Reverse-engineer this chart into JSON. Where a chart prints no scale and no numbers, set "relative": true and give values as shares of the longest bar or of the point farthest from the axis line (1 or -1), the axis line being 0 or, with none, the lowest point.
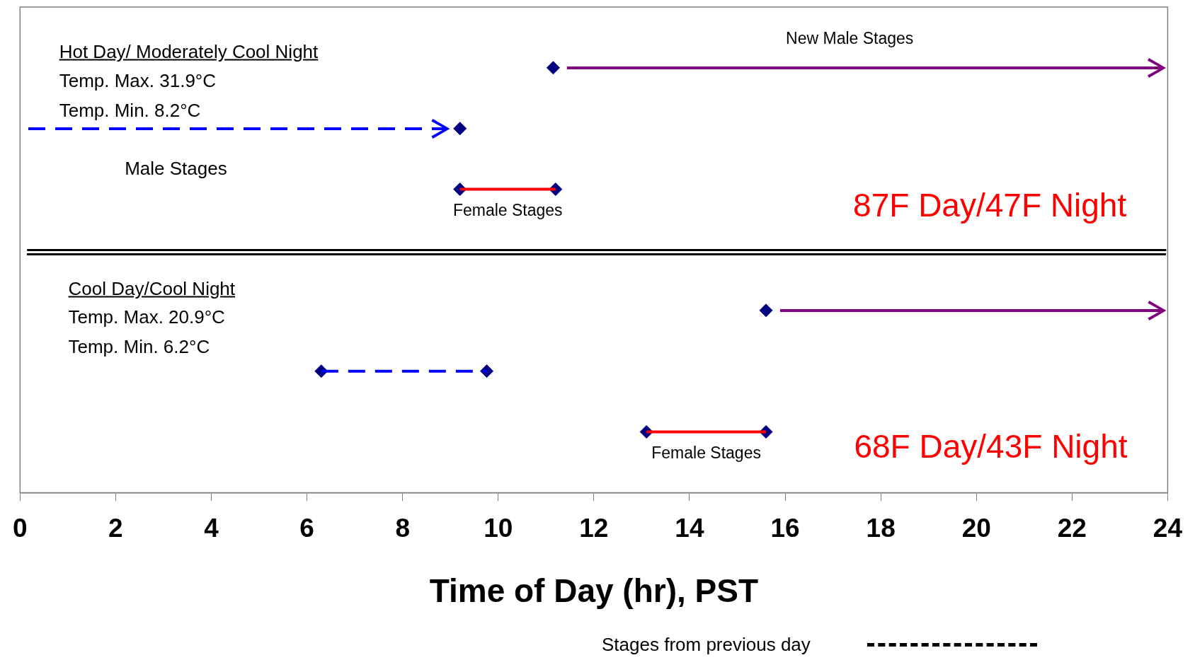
{
  "chart_data": {
    "type": "line",
    "relative": true,
    "xlabel": "Time of Day (hr), PST",
    "xlim": [
      0,
      24
    ],
    "xticks": [
      0,
      2,
      4,
      6,
      8,
      10,
      12,
      14,
      16,
      18,
      20,
      22,
      24
    ],
    "tick_labels": "x",
    "grid": false,
    "legend": false,
    "series": [
      {
        "name": "Female Stages",
        "color": "#ff0000",
        "x": [
          9.2,
          11.2
        ],
        "values": [
          0.714,
          0.714
        ],
        "line_style": "solid",
        "marker": "none"
      },
      {
        "color": "#0000ff",
        "x": [
          6.3,
          9.76
        ],
        "values": [
          0.286,
          0.286
        ],
        "line_style": "dashed",
        "marker": "none"
      },
      {
        "name": "Female Stages",
        "color": "#ff0000",
        "x": [
          13.1,
          15.6
        ],
        "values": [
          0.143,
          0.143
        ],
        "line_style": "solid",
        "marker": "none"
      },
      {
        "type": "scatter",
        "color": "#000080",
        "marker": "diamond",
        "x": [
          11.15,
          9.2,
          9.2,
          11.2,
          15.6,
          6.3,
          9.76,
          13.1,
          15.6
        ],
        "values": [
          1,
          0.857,
          0.714,
          0.714,
          0.429,
          0.286,
          0.286,
          0.143,
          0.143
        ]
      }
    ],
    "ref_lines": [
      {
        "axis": "y",
        "value": 0.571,
        "color": "#000000"
      }
    ],
    "annotations": [
      "New Male Stages",
      "Hot Day/ Moderately Cool Night",
      "Temp. Max.  31.9°C",
      "Temp. Min.    8.2°C",
      "Male Stages",
      "87F Day/47F Night",
      "Cool Day/Cool Night",
      "Temp. Max.  20.9°C",
      "Temp. Min.    6.2°C",
      "68F Day/43F Night",
      "Stages from previous day"
    ]
  }
}
